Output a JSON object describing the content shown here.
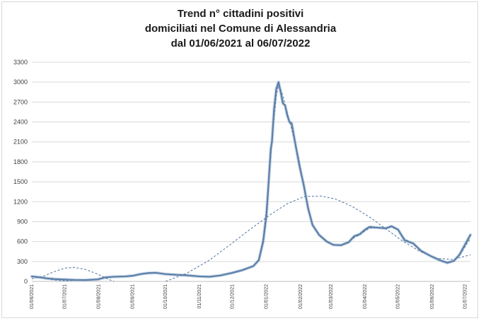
{
  "chart_data": {
    "type": "line",
    "title_lines": [
      "Trend n° cittadini positivi",
      "domiciliati nel Comune di Alessandria",
      "dal 01/06/2021 al 06/07/2022"
    ],
    "xlabel": "",
    "ylabel": "",
    "ylim": [
      0,
      3300
    ],
    "yticks": [
      0,
      300,
      600,
      900,
      1200,
      1500,
      1800,
      2100,
      2400,
      2700,
      3000,
      3300
    ],
    "grid": "horizontal",
    "legend": "none",
    "x_start": "2021-06-01",
    "x_end": "2022-07-06",
    "x_tick_labels": [
      "01/06/2021",
      "01/07/2021",
      "01/08/2021",
      "01/09/2021",
      "01/10/2021",
      "01/11/2021",
      "01/12/2021",
      "01/01/2022",
      "01/02/2022",
      "01/03/2022",
      "01/04/2022",
      "01/05/2022",
      "01/06/2022",
      "01/07/2022"
    ],
    "series": [
      {
        "style": "solid",
        "color": "#5b7fa8",
        "points": [
          [
            "2021-06-01",
            75
          ],
          [
            "2021-06-08",
            62
          ],
          [
            "2021-06-15",
            45
          ],
          [
            "2021-06-22",
            35
          ],
          [
            "2021-07-01",
            28
          ],
          [
            "2021-07-10",
            22
          ],
          [
            "2021-07-20",
            20
          ],
          [
            "2021-07-31",
            30
          ],
          [
            "2021-08-07",
            60
          ],
          [
            "2021-08-15",
            70
          ],
          [
            "2021-08-25",
            75
          ],
          [
            "2021-09-01",
            85
          ],
          [
            "2021-09-08",
            110
          ],
          [
            "2021-09-15",
            125
          ],
          [
            "2021-09-22",
            130
          ],
          [
            "2021-10-01",
            110
          ],
          [
            "2021-10-10",
            100
          ],
          [
            "2021-10-20",
            92
          ],
          [
            "2021-11-01",
            75
          ],
          [
            "2021-11-10",
            70
          ],
          [
            "2021-11-20",
            90
          ],
          [
            "2021-12-01",
            130
          ],
          [
            "2021-12-10",
            170
          ],
          [
            "2021-12-20",
            230
          ],
          [
            "2021-12-25",
            320
          ],
          [
            "2021-12-29",
            600
          ],
          [
            "2022-01-01",
            1000
          ],
          [
            "2022-01-03",
            1500
          ],
          [
            "2022-01-05",
            2000
          ],
          [
            "2022-01-06",
            2100
          ],
          [
            "2022-01-08",
            2600
          ],
          [
            "2022-01-10",
            2900
          ],
          [
            "2022-01-12",
            3000
          ],
          [
            "2022-01-14",
            2850
          ],
          [
            "2022-01-16",
            2680
          ],
          [
            "2022-01-18",
            2650
          ],
          [
            "2022-01-20",
            2500
          ],
          [
            "2022-01-22",
            2400
          ],
          [
            "2022-01-24",
            2380
          ],
          [
            "2022-01-27",
            2100
          ],
          [
            "2022-01-31",
            1750
          ],
          [
            "2022-02-04",
            1450
          ],
          [
            "2022-02-08",
            1100
          ],
          [
            "2022-02-12",
            850
          ],
          [
            "2022-02-18",
            700
          ],
          [
            "2022-02-25",
            600
          ],
          [
            "2022-03-03",
            550
          ],
          [
            "2022-03-10",
            545
          ],
          [
            "2022-03-17",
            590
          ],
          [
            "2022-03-22",
            680
          ],
          [
            "2022-03-27",
            710
          ],
          [
            "2022-04-01",
            780
          ],
          [
            "2022-04-05",
            820
          ],
          [
            "2022-04-12",
            810
          ],
          [
            "2022-04-20",
            800
          ],
          [
            "2022-04-25",
            830
          ],
          [
            "2022-05-01",
            780
          ],
          [
            "2022-05-07",
            620
          ],
          [
            "2022-05-15",
            570
          ],
          [
            "2022-05-22",
            460
          ],
          [
            "2022-05-31",
            380
          ],
          [
            "2022-06-08",
            320
          ],
          [
            "2022-06-15",
            280
          ],
          [
            "2022-06-21",
            310
          ],
          [
            "2022-06-26",
            400
          ],
          [
            "2022-07-01",
            550
          ],
          [
            "2022-07-06",
            700
          ]
        ]
      },
      {
        "style": "dashed",
        "color": "#5b7fa8",
        "points": [
          [
            "2021-06-01",
            80
          ],
          [
            "2021-06-08",
            60
          ],
          [
            "2021-06-15",
            40
          ],
          [
            "2021-06-22",
            20
          ],
          [
            "2021-07-01",
            10
          ],
          [
            "2021-07-10",
            15
          ],
          [
            "2021-07-20",
            25
          ],
          [
            "2021-07-31",
            30
          ],
          [
            "2021-08-07",
            55
          ],
          [
            "2021-08-15",
            70
          ],
          [
            "2021-08-25",
            78
          ],
          [
            "2021-09-01",
            85
          ],
          [
            "2021-09-08",
            110
          ],
          [
            "2021-09-15",
            122
          ],
          [
            "2021-09-22",
            128
          ],
          [
            "2021-10-01",
            110
          ],
          [
            "2021-10-10",
            98
          ],
          [
            "2021-10-20",
            90
          ],
          [
            "2021-11-01",
            75
          ],
          [
            "2021-11-10",
            72
          ],
          [
            "2021-11-20",
            92
          ],
          [
            "2021-12-01",
            125
          ],
          [
            "2021-12-10",
            165
          ],
          [
            "2021-12-20",
            225
          ],
          [
            "2021-12-25",
            330
          ],
          [
            "2021-12-29",
            650
          ],
          [
            "2022-01-01",
            1100
          ],
          [
            "2022-01-04",
            1700
          ],
          [
            "2022-01-07",
            2300
          ],
          [
            "2022-01-10",
            2800
          ],
          [
            "2022-01-12",
            2950
          ],
          [
            "2022-01-15",
            2850
          ],
          [
            "2022-01-19",
            2600
          ],
          [
            "2022-01-23",
            2350
          ],
          [
            "2022-01-27",
            2100
          ],
          [
            "2022-01-31",
            1800
          ],
          [
            "2022-02-04",
            1450
          ],
          [
            "2022-02-08",
            1100
          ],
          [
            "2022-02-12",
            850
          ],
          [
            "2022-02-18",
            700
          ],
          [
            "2022-02-25",
            600
          ],
          [
            "2022-03-03",
            555
          ],
          [
            "2022-03-10",
            550
          ],
          [
            "2022-03-17",
            590
          ],
          [
            "2022-03-22",
            660
          ],
          [
            "2022-03-27",
            700
          ],
          [
            "2022-04-01",
            760
          ],
          [
            "2022-04-05",
            800
          ],
          [
            "2022-04-12",
            810
          ],
          [
            "2022-04-20",
            800
          ],
          [
            "2022-04-25",
            820
          ],
          [
            "2022-05-01",
            780
          ],
          [
            "2022-05-07",
            640
          ],
          [
            "2022-05-15",
            560
          ],
          [
            "2022-05-22",
            470
          ],
          [
            "2022-05-31",
            380
          ],
          [
            "2022-06-08",
            320
          ],
          [
            "2022-06-15",
            290
          ],
          [
            "2022-06-21",
            310
          ],
          [
            "2022-06-26",
            390
          ],
          [
            "2022-07-01",
            520
          ],
          [
            "2022-07-06",
            650
          ]
        ]
      },
      {
        "style": "dashed",
        "color": "#5b7fa8",
        "points": [
          [
            "2021-06-01",
            40
          ],
          [
            "2021-06-12",
            80
          ],
          [
            "2021-06-22",
            150
          ],
          [
            "2021-07-01",
            200
          ],
          [
            "2021-07-10",
            210
          ],
          [
            "2021-07-20",
            180
          ],
          [
            "2021-07-31",
            110
          ],
          [
            "2021-08-10",
            30
          ],
          [
            "2021-08-15",
            0
          ]
        ]
      },
      {
        "style": "dashed",
        "color": "#5b7fa8",
        "points": [
          [
            "2021-10-01",
            0
          ],
          [
            "2021-10-20",
            120
          ],
          [
            "2021-11-10",
            320
          ],
          [
            "2021-12-01",
            580
          ],
          [
            "2021-12-20",
            820
          ],
          [
            "2022-01-05",
            1010
          ],
          [
            "2022-01-20",
            1170
          ],
          [
            "2022-02-05",
            1280
          ],
          [
            "2022-02-20",
            1285
          ],
          [
            "2022-03-05",
            1240
          ],
          [
            "2022-03-20",
            1130
          ],
          [
            "2022-04-05",
            970
          ],
          [
            "2022-04-20",
            790
          ],
          [
            "2022-05-05",
            610
          ],
          [
            "2022-05-20",
            460
          ],
          [
            "2022-06-05",
            350
          ],
          [
            "2022-06-20",
            330
          ],
          [
            "2022-07-06",
            400
          ]
        ]
      }
    ]
  }
}
